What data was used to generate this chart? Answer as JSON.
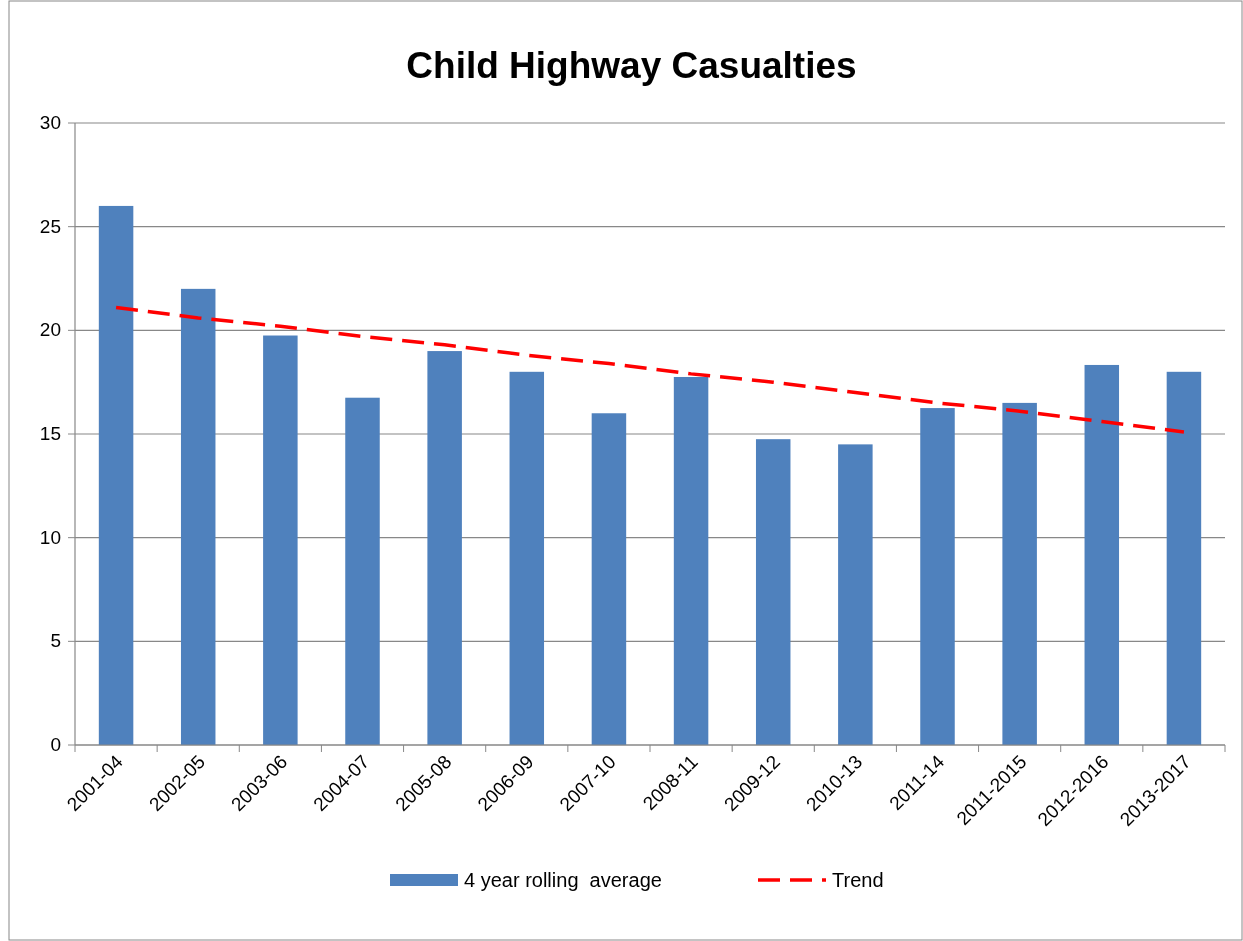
{
  "chart_data": {
    "type": "bar",
    "title": "Child Highway Casualties",
    "categories": [
      "2001-04",
      "2002-05",
      "2003-06",
      "2004-07",
      "2005-08",
      "2006-09",
      "2007-10",
      "2008-11",
      "2009-12",
      "2010-13",
      "2011-14",
      "2011-2015",
      "2012-2016",
      "2013-2017"
    ],
    "series": [
      {
        "name": "4 year rolling  average",
        "color": "#4f81bd",
        "values": [
          26,
          22,
          19.75,
          16.75,
          19,
          18,
          16,
          17.75,
          14.75,
          14.5,
          16.25,
          16.5,
          18.33,
          18
        ]
      },
      {
        "name": "Trend",
        "type": "line",
        "color": "#ff0000",
        "line_style": "dashed",
        "marker": "none",
        "values": [
          21.1,
          20.6,
          20.2,
          19.7,
          19.3,
          18.8,
          18.4,
          17.9,
          17.5,
          17.0,
          16.5,
          16.1,
          15.6,
          15.1
        ]
      }
    ],
    "ylim": [
      0,
      30
    ],
    "yticks": [
      0,
      5,
      10,
      15,
      20,
      25,
      30
    ],
    "grid": "y",
    "legend": "bottom"
  }
}
